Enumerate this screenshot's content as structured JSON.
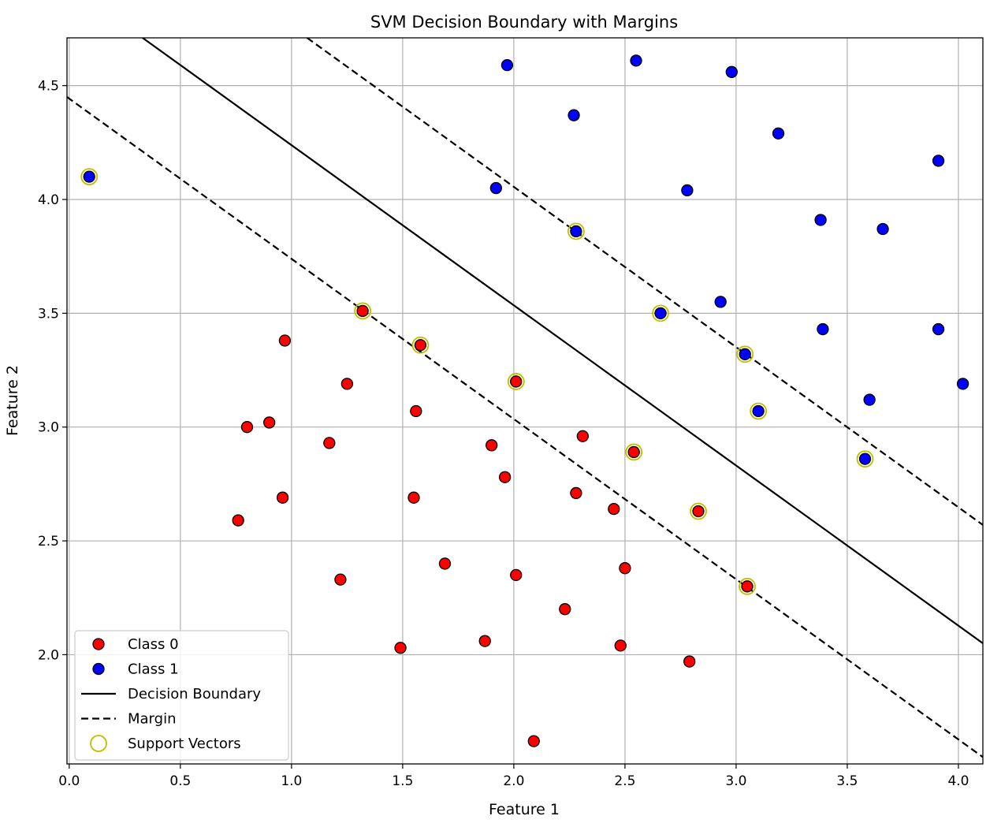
{
  "chart_data": {
    "type": "scatter",
    "title": "SVM Decision Boundary with Margins",
    "xlabel": "Feature 1",
    "ylabel": "Feature 2",
    "xlim": [
      -0.01,
      4.11
    ],
    "ylim": [
      1.52,
      4.71
    ],
    "grid": true,
    "x_ticks": [
      0.0,
      0.5,
      1.0,
      1.5,
      2.0,
      2.5,
      3.0,
      3.5,
      4.0
    ],
    "x_tick_labels": [
      "0.0",
      "0.5",
      "1.0",
      "1.5",
      "2.0",
      "2.5",
      "3.0",
      "3.5",
      "4.0"
    ],
    "y_ticks": [
      2.0,
      2.5,
      3.0,
      3.5,
      4.0,
      4.5
    ],
    "y_tick_labels": [
      "2.0",
      "2.5",
      "3.0",
      "3.5",
      "4.0",
      "4.5"
    ],
    "colors": {
      "class0": "#ff0000",
      "class1": "#0000ff",
      "support_vector": "#bfbf00",
      "line": "#000000",
      "grid": "#b0b0b0"
    },
    "legend": {
      "position": "lower-left",
      "entries": [
        {
          "label": "Class 0",
          "kind": "marker",
          "color": "#ff0000"
        },
        {
          "label": "Class 1",
          "kind": "marker",
          "color": "#0000ff"
        },
        {
          "label": "Decision Boundary",
          "kind": "solid"
        },
        {
          "label": "Margin",
          "kind": "dashed"
        },
        {
          "label": "Support Vectors",
          "kind": "ring",
          "color": "#bfbf00"
        }
      ]
    },
    "lines": [
      {
        "name": "Decision Boundary",
        "style": "solid",
        "points": [
          [
            0.33,
            4.71
          ],
          [
            4.11,
            2.05
          ]
        ]
      },
      {
        "name": "Margin",
        "style": "dashed",
        "points": [
          [
            1.07,
            4.71
          ],
          [
            4.11,
            2.57
          ]
        ]
      },
      {
        "name": "Margin",
        "style": "dashed",
        "points": [
          [
            -0.01,
            4.45
          ],
          [
            4.11,
            1.55
          ]
        ]
      }
    ],
    "series": [
      {
        "name": "Class 0",
        "color": "#ff0000",
        "points": [
          [
            0.97,
            3.38
          ],
          [
            1.25,
            3.19
          ],
          [
            1.56,
            3.07
          ],
          [
            0.8,
            3.0
          ],
          [
            0.9,
            3.02
          ],
          [
            1.17,
            2.93
          ],
          [
            1.9,
            2.92
          ],
          [
            2.31,
            2.96
          ],
          [
            0.96,
            2.69
          ],
          [
            1.55,
            2.69
          ],
          [
            1.96,
            2.78
          ],
          [
            2.28,
            2.71
          ],
          [
            0.76,
            2.59
          ],
          [
            2.45,
            2.64
          ],
          [
            1.69,
            2.4
          ],
          [
            2.01,
            2.35
          ],
          [
            2.5,
            2.38
          ],
          [
            1.22,
            2.33
          ],
          [
            2.23,
            2.2
          ],
          [
            1.49,
            2.03
          ],
          [
            1.87,
            2.06
          ],
          [
            2.48,
            2.04
          ],
          [
            2.79,
            1.97
          ],
          [
            2.09,
            1.62
          ],
          [
            1.32,
            3.51
          ],
          [
            1.58,
            3.36
          ],
          [
            2.01,
            3.2
          ],
          [
            2.54,
            2.89
          ],
          [
            2.83,
            2.63
          ],
          [
            3.05,
            2.3
          ]
        ]
      },
      {
        "name": "Class 1",
        "color": "#0000ff",
        "points": [
          [
            1.97,
            4.59
          ],
          [
            2.55,
            4.61
          ],
          [
            2.98,
            4.56
          ],
          [
            2.27,
            4.37
          ],
          [
            3.19,
            4.29
          ],
          [
            3.91,
            4.17
          ],
          [
            1.92,
            4.05
          ],
          [
            2.78,
            4.04
          ],
          [
            3.38,
            3.91
          ],
          [
            3.66,
            3.87
          ],
          [
            2.93,
            3.55
          ],
          [
            3.39,
            3.43
          ],
          [
            3.91,
            3.43
          ],
          [
            4.02,
            3.19
          ],
          [
            3.6,
            3.12
          ],
          [
            0.09,
            4.1
          ],
          [
            2.28,
            3.86
          ],
          [
            2.66,
            3.5
          ],
          [
            3.04,
            3.32
          ],
          [
            3.1,
            3.07
          ],
          [
            3.58,
            2.86
          ]
        ]
      }
    ],
    "support_vectors": [
      [
        0.09,
        4.1
      ],
      [
        2.28,
        3.86
      ],
      [
        2.66,
        3.5
      ],
      [
        3.04,
        3.32
      ],
      [
        3.1,
        3.07
      ],
      [
        3.58,
        2.86
      ],
      [
        1.32,
        3.51
      ],
      [
        1.58,
        3.36
      ],
      [
        2.01,
        3.2
      ],
      [
        2.54,
        2.89
      ],
      [
        2.83,
        2.63
      ],
      [
        3.05,
        2.3
      ]
    ]
  }
}
